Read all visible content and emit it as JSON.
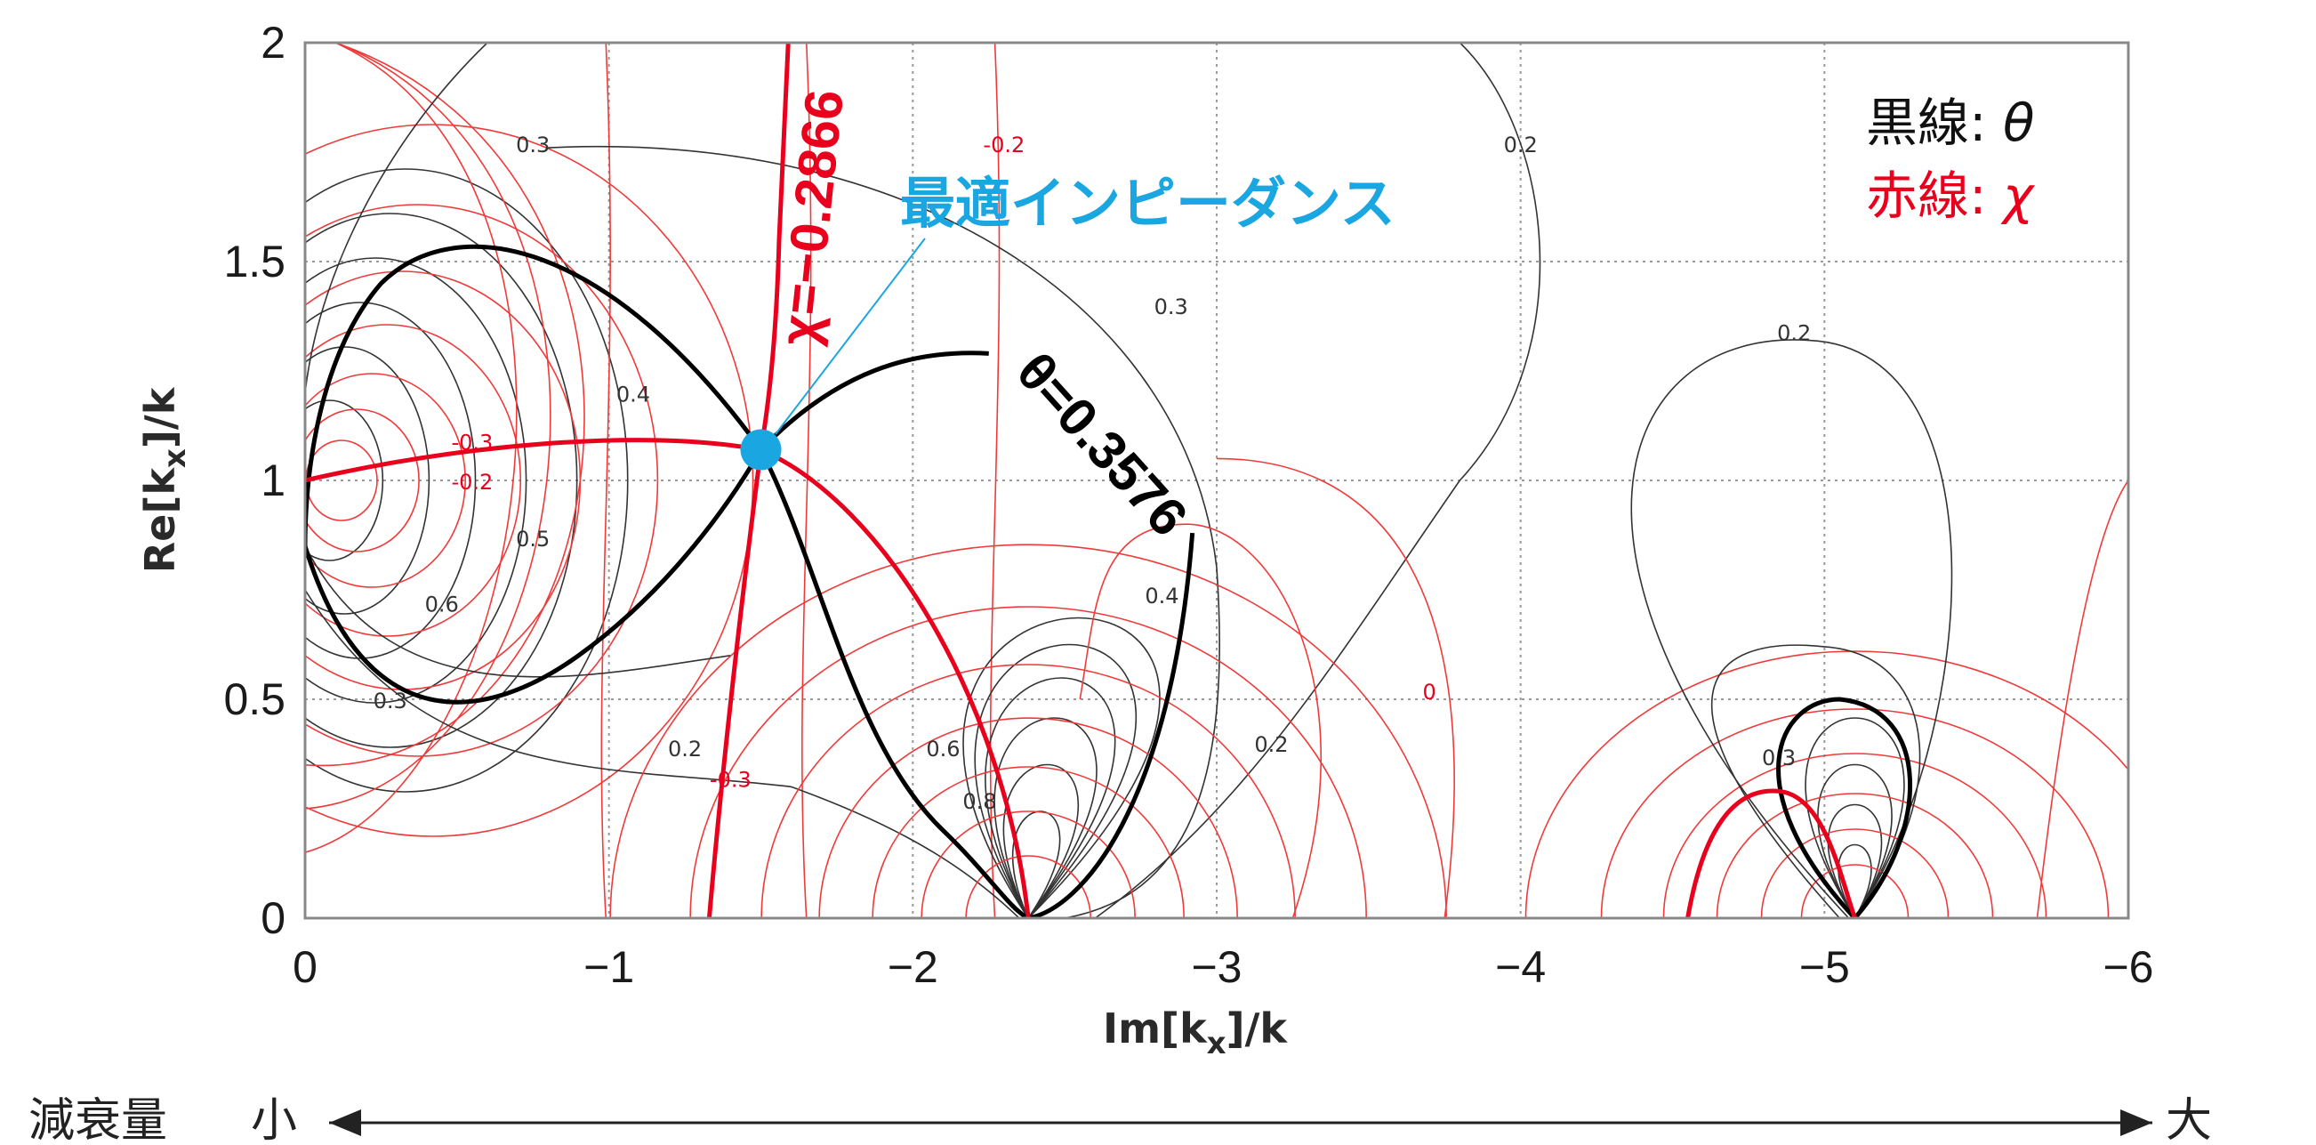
{
  "chart_data": {
    "type": "contour",
    "xlabel": "Im[k_x]/k",
    "ylabel": "Re[k_x]/k",
    "xlim": [
      0,
      -6
    ],
    "ylim": [
      0,
      2
    ],
    "x_ticks": [
      "0",
      "−1",
      "−2",
      "−3",
      "−4",
      "−5",
      "−6"
    ],
    "y_ticks": [
      "0",
      "0.5",
      "1",
      "1.5",
      "2"
    ],
    "grid": true,
    "legend": {
      "placement": "top-right",
      "entries": [
        {
          "prefix": "黒線:",
          "symbol": "θ",
          "color": "#111111"
        },
        {
          "prefix": "赤線:",
          "symbol": "χ",
          "color": "#e8001c"
        }
      ]
    },
    "highlight_contours": [
      {
        "name": "θ=0.3576",
        "family": "theta",
        "color": "#000000"
      },
      {
        "name": "χ=−0.2866",
        "family": "chi",
        "color": "#e8001c"
      }
    ],
    "optimum_point": {
      "label": "最適インピーダンス",
      "x": -1.5,
      "y": 1.07,
      "color": "#1aa6e0"
    },
    "contour_labels_theta": [
      {
        "text": "0.3",
        "x": -0.75,
        "y": 1.75
      },
      {
        "text": "0.4",
        "x": -1.08,
        "y": 1.18
      },
      {
        "text": "0.5",
        "x": -0.75,
        "y": 0.85
      },
      {
        "text": "0.6",
        "x": -0.45,
        "y": 0.7
      },
      {
        "text": "0.3",
        "x": -0.28,
        "y": 0.48
      },
      {
        "text": "0.2",
        "x": -1.25,
        "y": 0.37
      },
      {
        "text": "0.2",
        "x": -4.0,
        "y": 1.75
      },
      {
        "text": "0.3",
        "x": -2.85,
        "y": 1.38
      },
      {
        "text": "0.4",
        "x": -2.82,
        "y": 0.72
      },
      {
        "text": "0.2",
        "x": -3.18,
        "y": 0.38
      },
      {
        "text": "0.6",
        "x": -2.1,
        "y": 0.37
      },
      {
        "text": "0.8",
        "x": -2.22,
        "y": 0.25
      },
      {
        "text": "0.2",
        "x": -4.9,
        "y": 1.32
      },
      {
        "text": "0.3",
        "x": -4.85,
        "y": 0.35
      }
    ],
    "contour_labels_chi": [
      {
        "text": "-0.2",
        "x": -2.3,
        "y": 1.75
      },
      {
        "text": "-0.3",
        "x": -1.4,
        "y": 0.3
      },
      {
        "text": "0",
        "x": -3.7,
        "y": 0.5
      },
      {
        "text": "-0.2",
        "x": -0.55,
        "y": 0.98
      },
      {
        "text": "-0.3",
        "x": -0.55,
        "y": 1.07
      }
    ],
    "attenuation_axis": {
      "label": "減衰量",
      "low": "小",
      "high": "大"
    }
  }
}
